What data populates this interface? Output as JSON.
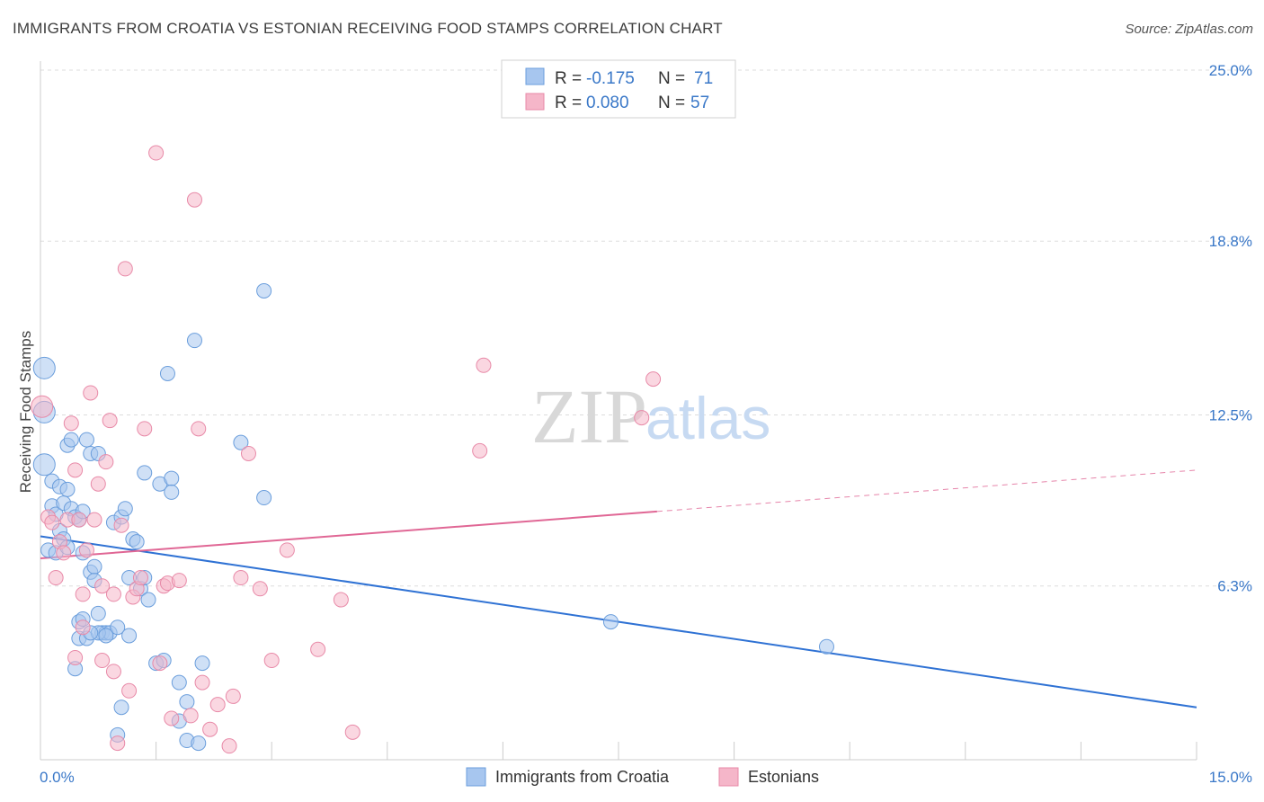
{
  "header": {
    "title": "IMMIGRANTS FROM CROATIA VS ESTONIAN RECEIVING FOOD STAMPS CORRELATION CHART",
    "source": "Source: ZipAtlas.com"
  },
  "colors": {
    "blue_fill": "#a7c6ef",
    "blue_stroke": "#6b9edc",
    "blue_line": "#2f72d4",
    "pink_fill": "#f5b6c9",
    "pink_stroke": "#e88aa8",
    "pink_line": "#e06795",
    "tick_text": "#3a78c8",
    "grid": "#dddddd"
  },
  "chart_data": {
    "type": "scatter",
    "title": "IMMIGRANTS FROM CROATIA VS ESTONIAN RECEIVING FOOD STAMPS CORRELATION CHART",
    "xlabel": "",
    "ylabel": "Receiving Food Stamps",
    "xlim": [
      0,
      15
    ],
    "ylim": [
      0,
      25
    ],
    "x_tick_labels": [
      "0.0%",
      "15.0%"
    ],
    "y_ticks": [
      6.3,
      12.5,
      18.8,
      25.0
    ],
    "y_tick_labels": [
      "6.3%",
      "12.5%",
      "18.8%",
      "25.0%"
    ],
    "grid": true,
    "legend": {
      "placement": "top-center",
      "entries": [
        {
          "r_label": "R = ",
          "r_value": "-0.175",
          "n_label": "N = ",
          "n_value": "71"
        },
        {
          "r_label": "R = ",
          "r_value": "0.080",
          "n_label": "N = ",
          "n_value": "57"
        }
      ]
    },
    "bottom_legend": [
      "Immigrants from Croatia",
      "Estonians"
    ],
    "watermark": "ZIPatlas",
    "series": [
      {
        "name": "Immigrants from Croatia",
        "trend": {
          "x0": 0,
          "y0": 8.1,
          "x1": 15,
          "y1": 1.9
        },
        "points": [
          [
            0.05,
            14.2
          ],
          [
            0.05,
            12.6
          ],
          [
            0.05,
            10.7
          ],
          [
            0.1,
            7.6
          ],
          [
            0.15,
            10.1
          ],
          [
            0.15,
            9.2
          ],
          [
            0.2,
            8.9
          ],
          [
            0.2,
            7.5
          ],
          [
            0.25,
            9.9
          ],
          [
            0.25,
            8.3
          ],
          [
            0.3,
            8.0
          ],
          [
            0.3,
            9.3
          ],
          [
            0.35,
            11.4
          ],
          [
            0.35,
            9.8
          ],
          [
            0.4,
            11.6
          ],
          [
            0.4,
            9.1
          ],
          [
            0.45,
            8.8
          ],
          [
            0.5,
            8.7
          ],
          [
            0.55,
            9.0
          ],
          [
            0.55,
            7.5
          ],
          [
            0.6,
            11.6
          ],
          [
            0.65,
            6.8
          ],
          [
            0.65,
            11.1
          ],
          [
            0.7,
            7.0
          ],
          [
            0.7,
            6.5
          ],
          [
            0.75,
            11.1
          ],
          [
            0.75,
            5.3
          ],
          [
            0.8,
            4.6
          ],
          [
            0.85,
            4.6
          ],
          [
            0.9,
            4.6
          ],
          [
            0.95,
            8.6
          ],
          [
            1.0,
            4.8
          ],
          [
            1.05,
            8.8
          ],
          [
            1.1,
            9.1
          ],
          [
            1.15,
            6.6
          ],
          [
            1.2,
            8.0
          ],
          [
            1.25,
            7.9
          ],
          [
            1.3,
            6.2
          ],
          [
            1.35,
            10.4
          ],
          [
            1.35,
            6.6
          ],
          [
            1.4,
            5.8
          ],
          [
            1.5,
            3.5
          ],
          [
            1.55,
            10.0
          ],
          [
            1.6,
            3.6
          ],
          [
            1.65,
            14.0
          ],
          [
            1.7,
            10.2
          ],
          [
            1.7,
            9.7
          ],
          [
            1.8,
            2.8
          ],
          [
            1.8,
            1.4
          ],
          [
            1.9,
            2.1
          ],
          [
            1.9,
            0.7
          ],
          [
            2.0,
            15.2
          ],
          [
            2.05,
            0.6
          ],
          [
            2.1,
            3.5
          ],
          [
            2.6,
            11.5
          ],
          [
            2.9,
            9.5
          ],
          [
            2.9,
            17.0
          ],
          [
            0.5,
            5.0
          ],
          [
            0.5,
            4.4
          ],
          [
            0.6,
            4.4
          ],
          [
            0.75,
            4.6
          ],
          [
            0.45,
            3.3
          ],
          [
            1.05,
            1.9
          ],
          [
            1.0,
            0.9
          ],
          [
            0.55,
            5.1
          ],
          [
            0.65,
            4.6
          ],
          [
            1.15,
            4.5
          ],
          [
            0.35,
            7.7
          ],
          [
            0.85,
            4.5
          ],
          [
            7.4,
            5.0
          ],
          [
            10.2,
            4.1
          ]
        ]
      },
      {
        "name": "Estonians",
        "trend": {
          "x0": 0,
          "y0": 7.3,
          "x1": 8.0,
          "y1": 9.0,
          "dash_x1": 15,
          "dash_y1": 10.5
        },
        "points": [
          [
            0.02,
            12.8
          ],
          [
            0.1,
            8.8
          ],
          [
            0.15,
            8.6
          ],
          [
            0.2,
            6.6
          ],
          [
            0.25,
            7.9
          ],
          [
            0.3,
            7.5
          ],
          [
            0.35,
            8.7
          ],
          [
            0.4,
            12.2
          ],
          [
            0.45,
            10.5
          ],
          [
            0.5,
            8.7
          ],
          [
            0.55,
            6.0
          ],
          [
            0.6,
            7.6
          ],
          [
            0.65,
            13.3
          ],
          [
            0.7,
            8.7
          ],
          [
            0.75,
            10.0
          ],
          [
            0.8,
            6.3
          ],
          [
            0.85,
            10.8
          ],
          [
            0.9,
            12.3
          ],
          [
            0.95,
            3.2
          ],
          [
            1.0,
            0.6
          ],
          [
            1.05,
            8.5
          ],
          [
            1.1,
            17.8
          ],
          [
            1.15,
            2.5
          ],
          [
            1.2,
            5.9
          ],
          [
            1.25,
            6.2
          ],
          [
            1.3,
            6.6
          ],
          [
            1.35,
            12.0
          ],
          [
            1.5,
            22.0
          ],
          [
            1.55,
            3.5
          ],
          [
            1.6,
            6.3
          ],
          [
            1.65,
            6.4
          ],
          [
            1.7,
            1.5
          ],
          [
            1.8,
            6.5
          ],
          [
            1.95,
            1.6
          ],
          [
            2.0,
            20.3
          ],
          [
            2.05,
            12.0
          ],
          [
            2.1,
            2.8
          ],
          [
            2.2,
            1.1
          ],
          [
            2.3,
            2.0
          ],
          [
            2.45,
            0.5
          ],
          [
            2.5,
            2.3
          ],
          [
            2.6,
            6.6
          ],
          [
            2.7,
            11.1
          ],
          [
            2.85,
            6.2
          ],
          [
            3.0,
            3.6
          ],
          [
            3.2,
            7.6
          ],
          [
            3.6,
            4.0
          ],
          [
            3.9,
            5.8
          ],
          [
            4.05,
            1.0
          ],
          [
            5.75,
            14.3
          ],
          [
            5.7,
            11.2
          ],
          [
            7.8,
            12.4
          ],
          [
            7.95,
            13.8
          ],
          [
            0.45,
            3.7
          ],
          [
            0.55,
            4.8
          ],
          [
            0.8,
            3.6
          ],
          [
            0.95,
            6.0
          ]
        ]
      }
    ]
  }
}
